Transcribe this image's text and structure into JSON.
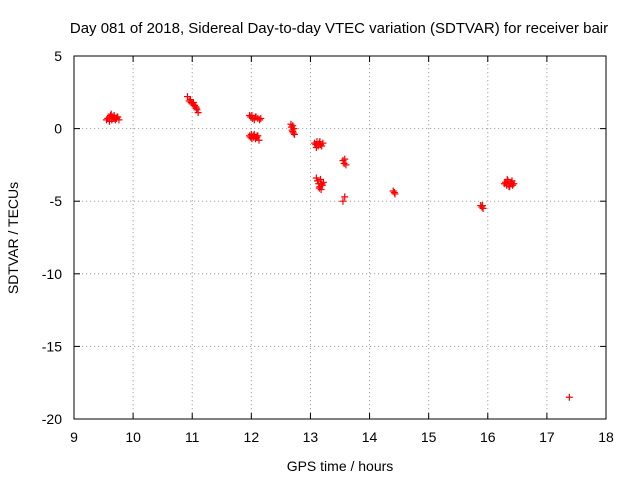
{
  "chart_data": {
    "type": "scatter",
    "title": "Day 081 of 2018, Sidereal Day-to-day VTEC variation (SDTVAR) for receiver bair",
    "xlabel": "GPS time / hours",
    "ylabel": "SDTVAR / TECUs",
    "xlim": [
      9,
      18
    ],
    "ylim": [
      -20,
      5
    ],
    "xticks": [
      "9",
      "10",
      "11",
      "12",
      "13",
      "14",
      "15",
      "16",
      "17",
      "18"
    ],
    "yticks": [
      "5",
      "0",
      "-5",
      "-10",
      "-15",
      "-20"
    ],
    "grid": true,
    "marker": "+",
    "series": [
      {
        "name": "SDTVAR",
        "color": "#ff0000",
        "x": [
          9.55,
          9.57,
          9.6,
          9.62,
          9.63,
          9.65,
          9.67,
          9.68,
          9.7,
          9.72,
          9.74,
          9.76,
          9.6,
          9.64,
          9.69,
          9.73,
          10.92,
          10.95,
          10.98,
          11.0,
          11.02,
          11.04,
          11.06,
          11.08,
          11.1,
          10.97,
          11.03,
          11.07,
          11.97,
          11.99,
          12.02,
          12.05,
          12.08,
          12.11,
          12.14,
          12.16,
          12.01,
          12.07,
          11.97,
          11.99,
          12.01,
          12.03,
          12.05,
          12.07,
          12.09,
          12.11,
          12.13,
          12.0,
          12.04,
          12.1,
          12.67,
          12.68,
          12.69,
          12.7,
          12.71,
          12.72,
          12.73,
          12.7,
          13.07,
          13.09,
          13.11,
          13.13,
          13.15,
          13.17,
          13.19,
          13.21,
          13.1,
          13.16,
          13.1,
          13.12,
          13.14,
          13.16,
          13.18,
          13.2,
          13.22,
          13.15,
          13.17,
          13.19,
          13.55,
          13.57,
          13.58,
          13.6,
          13.58,
          13.55,
          14.4,
          14.42,
          14.43,
          15.88,
          15.9,
          15.92,
          15.91,
          16.28,
          16.3,
          16.32,
          16.34,
          16.36,
          16.38,
          16.4,
          16.42,
          16.44,
          16.33,
          16.37,
          16.41,
          17.38
        ],
        "y": [
          0.6,
          0.7,
          0.8,
          0.9,
          1.0,
          0.8,
          0.7,
          0.9,
          0.6,
          0.7,
          0.8,
          0.6,
          0.5,
          0.6,
          0.7,
          0.8,
          2.2,
          1.9,
          1.8,
          1.7,
          1.8,
          1.6,
          1.5,
          1.3,
          1.1,
          2.0,
          1.6,
          1.4,
          0.9,
          0.8,
          0.7,
          0.6,
          0.8,
          0.7,
          0.6,
          0.7,
          0.9,
          0.8,
          -0.5,
          -0.6,
          -0.7,
          -0.5,
          -0.4,
          -0.7,
          -0.6,
          -0.5,
          -0.8,
          -0.4,
          -0.6,
          -0.5,
          0.3,
          0.1,
          -0.1,
          -0.2,
          -0.3,
          0.0,
          -0.4,
          0.2,
          -1.0,
          -1.1,
          -0.9,
          -1.2,
          -1.0,
          -1.1,
          -1.2,
          -1.0,
          -1.3,
          -0.9,
          -3.4,
          -3.6,
          -3.8,
          -4.0,
          -4.2,
          -3.9,
          -3.7,
          -4.1,
          -3.5,
          -3.8,
          -2.2,
          -2.4,
          -2.1,
          -2.5,
          -4.7,
          -5.0,
          -4.3,
          -4.4,
          -4.5,
          -5.3,
          -5.4,
          -5.5,
          -5.3,
          -3.8,
          -3.7,
          -3.9,
          -3.6,
          -4.0,
          -3.8,
          -3.7,
          -3.9,
          -3.8,
          -3.5,
          -4.0,
          -3.6,
          -18.5
        ]
      }
    ]
  }
}
